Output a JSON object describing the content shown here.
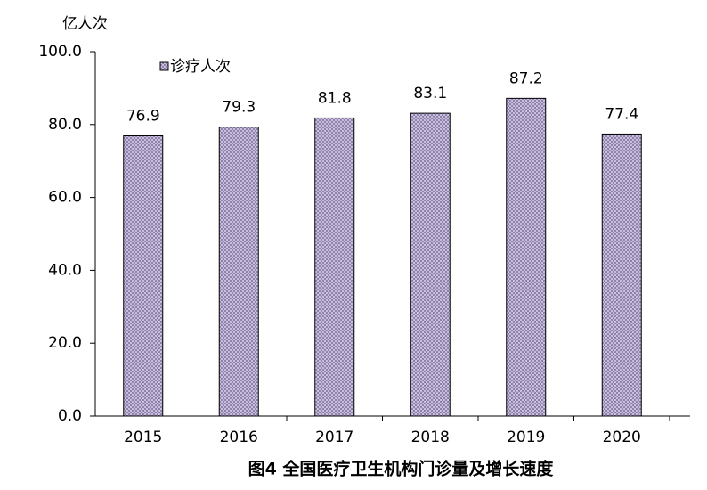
{
  "chart_data": {
    "type": "bar",
    "title": "图4  全国医疗卫生机构门诊量及增长速度",
    "y_label": "亿人次",
    "categories": [
      "2015",
      "2016",
      "2017",
      "2018",
      "2019",
      "2020"
    ],
    "series": [
      {
        "name": "诊疗人次",
        "color": "#c9bfdc",
        "values": [
          76.9,
          79.3,
          81.8,
          83.1,
          87.2,
          77.4
        ]
      }
    ],
    "ylim": [
      0,
      100
    ],
    "yticks": [
      {
        "value": 0,
        "label": "0.0"
      },
      {
        "value": 20,
        "label": "20.0"
      },
      {
        "value": 40,
        "label": "40.0"
      },
      {
        "value": 60,
        "label": "60.0"
      },
      {
        "value": 80,
        "label": "80.0"
      },
      {
        "value": 100,
        "label": "100.0"
      }
    ],
    "grid": false,
    "legend": "top-left"
  }
}
